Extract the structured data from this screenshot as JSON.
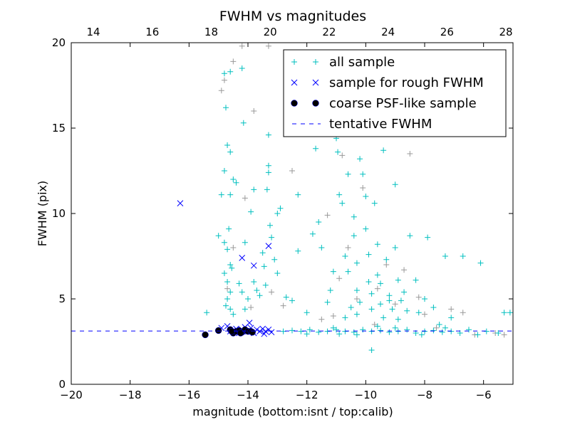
{
  "chart_data": {
    "type": "scatter",
    "title": "FWHM vs magnitudes",
    "xlabel": "magnitude (bottom:isnt / top:calib)",
    "ylabel": "FWHM (pix)",
    "xlim": [
      -20,
      -5
    ],
    "ylim": [
      0,
      20
    ],
    "top_xlim": [
      13.25,
      28.24
    ],
    "x_ticks": [
      -20,
      -18,
      -16,
      -14,
      -12,
      -10,
      -8,
      -6
    ],
    "x_tick_labels": [
      "−20",
      "−18",
      "−16",
      "−14",
      "−12",
      "−10",
      "−8",
      "−6"
    ],
    "top_x_ticks": [
      14,
      16,
      18,
      20,
      22,
      24,
      26,
      28
    ],
    "top_x_tick_labels": [
      "14",
      "16",
      "18",
      "20",
      "22",
      "24",
      "26",
      "28"
    ],
    "y_ticks": [
      0,
      5,
      10,
      15,
      20
    ],
    "y_tick_labels": [
      "0",
      "5",
      "10",
      "15",
      "20"
    ],
    "grid": false,
    "legend_position": "top-right",
    "tentative_fwhm": 3.12,
    "series": [
      {
        "name": "",
        "marker": "+",
        "color": "#999999",
        "points": [
          [
            -14.8,
            17.8
          ],
          [
            -14.5,
            18.9
          ],
          [
            -14.2,
            19.8
          ],
          [
            -13.8,
            16.0
          ],
          [
            -13.3,
            19.8
          ],
          [
            -14.9,
            17.2
          ],
          [
            -14.1,
            10.9
          ],
          [
            -14.5,
            8.0
          ],
          [
            -14.7,
            5.6
          ],
          [
            -13.9,
            4.5
          ],
          [
            -13.2,
            5.4
          ],
          [
            -12.8,
            4.6
          ],
          [
            -12.5,
            12.5
          ],
          [
            -11.5,
            3.8
          ],
          [
            -11.1,
            4.0
          ],
          [
            -10.9,
            6.2
          ],
          [
            -10.6,
            8.0
          ],
          [
            -10.3,
            5.0
          ],
          [
            -10.1,
            11.5
          ],
          [
            -9.7,
            3.5
          ],
          [
            -9.3,
            7.0
          ],
          [
            -9.0,
            4.7
          ],
          [
            -8.7,
            6.7
          ],
          [
            -8.5,
            13.5
          ],
          [
            -8.2,
            5.1
          ],
          [
            -8.0,
            4.1
          ],
          [
            -7.6,
            3.3
          ],
          [
            -7.1,
            4.4
          ],
          [
            -6.7,
            4.2
          ],
          [
            -6.3,
            2.9
          ],
          [
            -5.6,
            3.0
          ],
          [
            -5.3,
            2.9
          ],
          [
            -11.3,
            9.9
          ],
          [
            -10.8,
            13.4
          ],
          [
            -9.6,
            5.6
          ]
        ]
      },
      {
        "name": "all sample",
        "marker": "+",
        "color": "#00bfbf",
        "points": [
          [
            -15.4,
            4.2
          ],
          [
            -15.0,
            8.7
          ],
          [
            -14.9,
            11.1
          ],
          [
            -14.8,
            18.2
          ],
          [
            -14.75,
            16.2
          ],
          [
            -14.7,
            14.0
          ],
          [
            -14.6,
            13.6
          ],
          [
            -14.8,
            12.5
          ],
          [
            -14.6,
            11.1
          ],
          [
            -14.65,
            9.1
          ],
          [
            -14.8,
            8.3
          ],
          [
            -14.7,
            7.9
          ],
          [
            -14.6,
            7.0
          ],
          [
            -14.8,
            6.5
          ],
          [
            -14.7,
            6.0
          ],
          [
            -14.6,
            5.4
          ],
          [
            -14.7,
            5.0
          ],
          [
            -14.6,
            4.4
          ],
          [
            -14.5,
            4.1
          ],
          [
            -14.75,
            4.6
          ],
          [
            -14.55,
            6.8
          ],
          [
            -14.4,
            11.8
          ],
          [
            -14.6,
            18.3
          ],
          [
            -14.5,
            12.0
          ],
          [
            -14.2,
            18.5
          ],
          [
            -14.15,
            15.3
          ],
          [
            -14.1,
            8.3
          ],
          [
            -14.3,
            5.9
          ],
          [
            -14.2,
            5.4
          ],
          [
            -14.1,
            4.4
          ],
          [
            -14.0,
            5.0
          ],
          [
            -13.9,
            10.1
          ],
          [
            -13.8,
            11.4
          ],
          [
            -13.8,
            6.0
          ],
          [
            -13.7,
            5.5
          ],
          [
            -13.6,
            5.2
          ],
          [
            -13.5,
            7.7
          ],
          [
            -13.45,
            6.9
          ],
          [
            -13.4,
            5.8
          ],
          [
            -13.35,
            11.4
          ],
          [
            -13.3,
            12.8
          ],
          [
            -13.3,
            12.4
          ],
          [
            -13.3,
            14.6
          ],
          [
            -13.25,
            9.3
          ],
          [
            -13.2,
            8.6
          ],
          [
            -13.1,
            7.3
          ],
          [
            -13.0,
            6.5
          ],
          [
            -13.0,
            10.0
          ],
          [
            -12.9,
            10.3
          ],
          [
            -12.7,
            5.1
          ],
          [
            -12.5,
            4.9
          ],
          [
            -12.3,
            7.8
          ],
          [
            -12.3,
            11.1
          ],
          [
            -12.0,
            4.2
          ],
          [
            -11.8,
            8.8
          ],
          [
            -11.7,
            13.8
          ],
          [
            -11.6,
            9.5
          ],
          [
            -11.5,
            8.0
          ],
          [
            -11.3,
            4.8
          ],
          [
            -11.1,
            6.6
          ],
          [
            -11.0,
            14.4
          ],
          [
            -10.95,
            13.6
          ],
          [
            -10.9,
            11.1
          ],
          [
            -10.8,
            10.6
          ],
          [
            -10.7,
            7.5
          ],
          [
            -10.6,
            12.3
          ],
          [
            -10.6,
            6.6
          ],
          [
            -10.5,
            4.5
          ],
          [
            -10.4,
            9.8
          ],
          [
            -10.4,
            8.7
          ],
          [
            -10.3,
            7.1
          ],
          [
            -10.3,
            5.5
          ],
          [
            -10.2,
            4.8
          ],
          [
            -10.2,
            13.2
          ],
          [
            -10.1,
            12.3
          ],
          [
            -10.0,
            11.0
          ],
          [
            -10.0,
            9.1
          ],
          [
            -9.9,
            7.6
          ],
          [
            -9.9,
            6.0
          ],
          [
            -9.8,
            5.3
          ],
          [
            -9.8,
            4.4
          ],
          [
            -9.7,
            10.6
          ],
          [
            -9.6,
            8.2
          ],
          [
            -9.6,
            6.4
          ],
          [
            -9.5,
            5.9
          ],
          [
            -9.5,
            4.7
          ],
          [
            -9.4,
            3.9
          ],
          [
            -9.4,
            13.7
          ],
          [
            -9.3,
            7.3
          ],
          [
            -9.2,
            5.2
          ],
          [
            -9.1,
            4.4
          ],
          [
            -9.0,
            11.7
          ],
          [
            -9.0,
            8.0
          ],
          [
            -8.9,
            6.1
          ],
          [
            -8.8,
            4.9
          ],
          [
            -8.7,
            5.4
          ],
          [
            -8.6,
            4.3
          ],
          [
            -8.5,
            8.7
          ],
          [
            -8.3,
            6.1
          ],
          [
            -8.2,
            4.2
          ],
          [
            -8.0,
            5.0
          ],
          [
            -7.9,
            8.6
          ],
          [
            -7.7,
            4.5
          ],
          [
            -7.5,
            3.5
          ],
          [
            -7.3,
            7.5
          ],
          [
            -7.1,
            3.9
          ],
          [
            -6.7,
            7.5
          ],
          [
            -6.1,
            7.1
          ],
          [
            -5.3,
            4.2
          ],
          [
            -9.8,
            2.0
          ],
          [
            -10.3,
            4.1
          ],
          [
            -9.2,
            4.9
          ],
          [
            -8.9,
            3.8
          ],
          [
            -11.2,
            5.5
          ],
          [
            -10.7,
            3.9
          ],
          [
            -12.8,
            3.1
          ],
          [
            -12.5,
            3.15
          ],
          [
            -12.2,
            3.1
          ],
          [
            -11.9,
            3.2
          ],
          [
            -11.6,
            3.05
          ],
          [
            -11.3,
            3.1
          ],
          [
            -11.0,
            3.2
          ],
          [
            -10.7,
            3.1
          ],
          [
            -10.4,
            3.05
          ],
          [
            -10.1,
            3.2
          ],
          [
            -9.8,
            3.1
          ],
          [
            -9.5,
            3.15
          ],
          [
            -9.2,
            3.05
          ],
          [
            -8.9,
            3.1
          ],
          [
            -8.6,
            3.2
          ],
          [
            -8.3,
            3.0
          ],
          [
            -8.0,
            3.1
          ],
          [
            -7.7,
            3.15
          ],
          [
            -7.4,
            3.05
          ],
          [
            -7.1,
            3.1
          ],
          [
            -6.8,
            3.0
          ],
          [
            -6.5,
            3.2
          ],
          [
            -6.2,
            2.9
          ],
          [
            -5.9,
            3.1
          ],
          [
            -5.5,
            3.0
          ],
          [
            -5.1,
            4.2
          ],
          [
            -12.0,
            2.95
          ],
          [
            -11.1,
            3.3
          ],
          [
            -10.3,
            2.9
          ],
          [
            -9.0,
            3.3
          ],
          [
            -8.1,
            2.9
          ],
          [
            -7.3,
            3.3
          ],
          [
            -9.6,
            3.4
          ],
          [
            -10.9,
            2.95
          ]
        ]
      },
      {
        "name": "sample for rough FWHM",
        "marker": "x",
        "color": "#0000ff",
        "points": [
          [
            -16.3,
            10.6
          ],
          [
            -14.2,
            7.4
          ],
          [
            -13.8,
            6.95
          ],
          [
            -13.3,
            8.1
          ],
          [
            -14.9,
            3.3
          ],
          [
            -14.7,
            3.4
          ],
          [
            -14.6,
            3.1
          ],
          [
            -14.4,
            3.25
          ],
          [
            -14.2,
            3.2
          ],
          [
            -14.0,
            3.1
          ],
          [
            -13.9,
            3.3
          ],
          [
            -13.8,
            3.0
          ],
          [
            -13.7,
            3.2
          ],
          [
            -13.6,
            3.1
          ],
          [
            -13.5,
            3.25
          ],
          [
            -13.45,
            2.95
          ],
          [
            -13.4,
            3.1
          ],
          [
            -13.3,
            3.2
          ],
          [
            -13.2,
            3.05
          ],
          [
            -14.1,
            3.35
          ],
          [
            -13.95,
            3.6
          ],
          [
            -14.3,
            3.0
          ]
        ]
      },
      {
        "name": "coarse PSF-like sample",
        "marker": "o",
        "color": "#000000",
        "points": [
          [
            -15.45,
            2.9
          ],
          [
            -15.0,
            3.15
          ],
          [
            -14.6,
            3.2
          ],
          [
            -14.5,
            3.0
          ],
          [
            -14.4,
            3.1
          ],
          [
            -14.3,
            3.15
          ],
          [
            -14.2,
            3.05
          ],
          [
            -14.1,
            3.2
          ],
          [
            -14.0,
            3.1
          ],
          [
            -13.9,
            3.1
          ],
          [
            -14.55,
            3.1
          ],
          [
            -14.25,
            3.0
          ],
          [
            -13.85,
            3.05
          ]
        ]
      }
    ],
    "legend": [
      "all sample",
      "sample for rough FWHM",
      "coarse PSF-like sample",
      "tentative FWHM"
    ]
  }
}
